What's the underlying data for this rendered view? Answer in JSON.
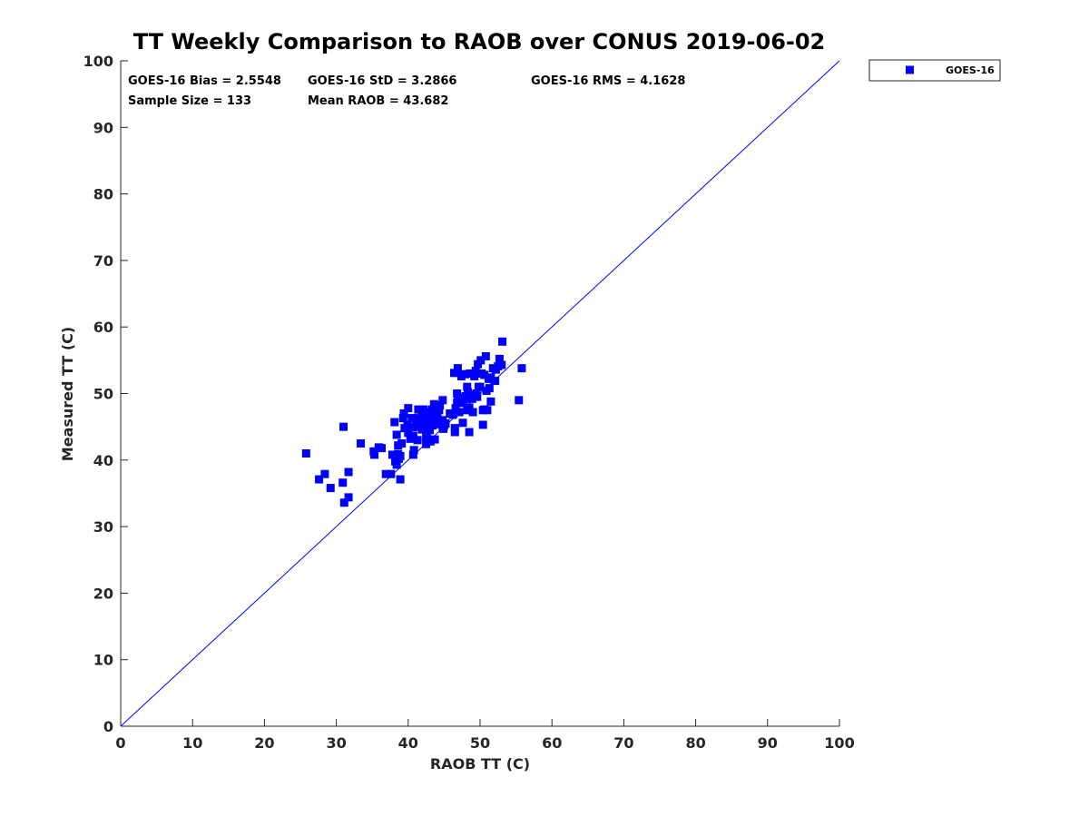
{
  "chart_data": {
    "type": "scatter",
    "title": "TT Weekly Comparison to RAOB over CONUS 2019-06-02",
    "xlabel": "RAOB TT (C)",
    "ylabel": "Measured TT (C)",
    "xlim": [
      0,
      100
    ],
    "ylim": [
      0,
      100
    ],
    "xticks": [
      "0",
      "10",
      "20",
      "30",
      "40",
      "50",
      "60",
      "70",
      "80",
      "90",
      "100"
    ],
    "yticks": [
      "0",
      "10",
      "20",
      "30",
      "40",
      "50",
      "60",
      "70",
      "80",
      "90",
      "100"
    ],
    "grid": false,
    "legend": {
      "position": "outside-top-right",
      "entries": [
        "GOES-16"
      ]
    },
    "reference_line": {
      "type": "one-to-one",
      "color": "#0000ff"
    },
    "annotations": {
      "bias": "GOES-16 Bias = 2.5548",
      "std": "GOES-16 StD = 3.2866",
      "rms": "GOES-16 RMS = 4.1628",
      "sample": "Sample Size = 133",
      "mean": "Mean RAOB = 43.682"
    },
    "series": [
      {
        "name": "GOES-16",
        "color": "#0000ff",
        "marker": "square",
        "points": [
          [
            25.8,
            41.0
          ],
          [
            27.6,
            37.1
          ],
          [
            28.4,
            37.9
          ],
          [
            29.2,
            35.8
          ],
          [
            31.0,
            45.0
          ],
          [
            30.9,
            36.6
          ],
          [
            31.1,
            33.6
          ],
          [
            31.7,
            38.2
          ],
          [
            31.7,
            34.4
          ],
          [
            33.4,
            42.5
          ],
          [
            35.2,
            41.3
          ],
          [
            35.3,
            40.8
          ],
          [
            35.9,
            41.9
          ],
          [
            36.9,
            37.9
          ],
          [
            37.6,
            37.9
          ],
          [
            37.8,
            40.8
          ],
          [
            38.1,
            45.7
          ],
          [
            38.4,
            43.8
          ],
          [
            38.4,
            39.3
          ],
          [
            38.6,
            42.2
          ],
          [
            38.6,
            40.9
          ],
          [
            38.7,
            40.2
          ],
          [
            38.9,
            40.6
          ],
          [
            38.9,
            37.1
          ],
          [
            39.1,
            42.5
          ],
          [
            39.3,
            46.3
          ],
          [
            39.4,
            47.0
          ],
          [
            40.0,
            47.8
          ],
          [
            39.9,
            45.3
          ],
          [
            40.0,
            44.1
          ],
          [
            40.5,
            46.3
          ],
          [
            40.7,
            44.9
          ],
          [
            40.7,
            43.6
          ],
          [
            40.8,
            41.5
          ],
          [
            40.7,
            40.8
          ],
          [
            41.1,
            45.1
          ],
          [
            41.3,
            46.3
          ],
          [
            41.3,
            43.0
          ],
          [
            41.4,
            47.6
          ],
          [
            41.9,
            44.6
          ],
          [
            41.9,
            46.5
          ],
          [
            42.1,
            47.6
          ],
          [
            42.3,
            45.9
          ],
          [
            42.5,
            46.7
          ],
          [
            42.5,
            42.4
          ],
          [
            42.5,
            43.4
          ],
          [
            42.7,
            47.2
          ],
          [
            42.9,
            46.0
          ],
          [
            42.9,
            44.8
          ],
          [
            43.1,
            42.8
          ],
          [
            43.3,
            47.6
          ],
          [
            43.4,
            45.2
          ],
          [
            43.6,
            48.4
          ],
          [
            43.6,
            46.4
          ],
          [
            43.7,
            43.1
          ],
          [
            44.0,
            47.0
          ],
          [
            44.1,
            46.2
          ],
          [
            44.2,
            45.4
          ],
          [
            44.4,
            48.2
          ],
          [
            44.5,
            45.8
          ],
          [
            44.8,
            49.0
          ],
          [
            44.8,
            46.0
          ],
          [
            44.9,
            44.7
          ],
          [
            45.2,
            45.5
          ],
          [
            46.3,
            47.0
          ],
          [
            46.4,
            53.1
          ],
          [
            46.5,
            44.2
          ],
          [
            46.5,
            44.8
          ],
          [
            46.6,
            47.8
          ],
          [
            46.8,
            50.0
          ],
          [
            46.8,
            48.6
          ],
          [
            46.9,
            53.8
          ],
          [
            47.1,
            47.2
          ],
          [
            47.2,
            49.0
          ],
          [
            47.6,
            48.6
          ],
          [
            47.6,
            45.6
          ],
          [
            47.9,
            52.9
          ],
          [
            48.0,
            49.6
          ],
          [
            48.2,
            51.0
          ],
          [
            48.2,
            47.5
          ],
          [
            48.3,
            50.2
          ],
          [
            48.5,
            44.2
          ],
          [
            48.6,
            53.0
          ],
          [
            48.9,
            49.2
          ],
          [
            49.0,
            47.2
          ],
          [
            49.2,
            52.6
          ],
          [
            49.5,
            50.0
          ],
          [
            49.6,
            49.5
          ],
          [
            49.7,
            54.4
          ],
          [
            50.0,
            51.0
          ],
          [
            50.1,
            55.0
          ],
          [
            50.2,
            53.0
          ],
          [
            50.4,
            45.3
          ],
          [
            50.4,
            47.5
          ],
          [
            50.6,
            52.8
          ],
          [
            50.8,
            55.6
          ],
          [
            50.9,
            50.4
          ],
          [
            51.0,
            47.5
          ],
          [
            51.3,
            50.8
          ],
          [
            51.5,
            52.4
          ],
          [
            51.5,
            48.8
          ],
          [
            51.8,
            53.8
          ],
          [
            52.1,
            51.9
          ],
          [
            52.5,
            54.1
          ],
          [
            52.7,
            55.2
          ],
          [
            53.0,
            54.3
          ],
          [
            53.1,
            57.8
          ],
          [
            55.4,
            49.0
          ],
          [
            55.8,
            53.8
          ],
          [
            43.0,
            44.5
          ],
          [
            44.3,
            47.5
          ],
          [
            45.8,
            47.0
          ],
          [
            47.4,
            52.6
          ],
          [
            49.8,
            51.0
          ],
          [
            41.8,
            46.0
          ],
          [
            39.5,
            44.8
          ],
          [
            42.0,
            45.5
          ],
          [
            46.9,
            49.4
          ],
          [
            50.6,
            47.6
          ],
          [
            48.8,
            49.8
          ],
          [
            45.0,
            45.2
          ],
          [
            43.8,
            47.8
          ],
          [
            40.3,
            43.2
          ],
          [
            38.2,
            39.8
          ],
          [
            36.3,
            41.8
          ],
          [
            47.8,
            49.2
          ],
          [
            49.4,
            53.4
          ],
          [
            51.2,
            52.2
          ],
          [
            52.2,
            53.6
          ],
          [
            44.8,
            44.8
          ],
          [
            42.6,
            44.0
          ],
          [
            46.2,
            46.8
          ],
          [
            48.5,
            47.9
          ]
        ]
      }
    ]
  }
}
